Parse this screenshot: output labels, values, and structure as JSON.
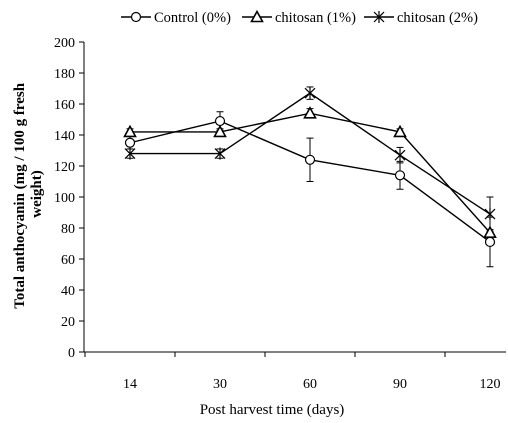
{
  "chart_data": {
    "type": "line",
    "title": "",
    "xlabel": "Post harvest time (days)",
    "ylabel_lines": [
      "Total anthocyanin (mg / 100 g fresh",
      "weight)"
    ],
    "categories": [
      "14",
      "30",
      "60",
      "90",
      "120"
    ],
    "ylim": [
      0,
      200
    ],
    "yticks": [
      0,
      20,
      40,
      60,
      80,
      100,
      120,
      140,
      160,
      180,
      200
    ],
    "grid": false,
    "legend_position": "top",
    "series": [
      {
        "name": "Control (0%)",
        "marker": "circle",
        "values": [
          135,
          149,
          124,
          114,
          71
        ],
        "errors": [
          4,
          6,
          14,
          9,
          16
        ]
      },
      {
        "name": "chitosan (1%)",
        "marker": "triangle",
        "values": [
          142,
          142,
          154,
          142,
          77
        ],
        "errors": [
          2,
          2,
          3,
          2,
          2
        ]
      },
      {
        "name": "chitosan (2%)",
        "marker": "star",
        "values": [
          128,
          128,
          167,
          127,
          89
        ],
        "errors": [
          3,
          3,
          4,
          5,
          11
        ]
      }
    ]
  }
}
